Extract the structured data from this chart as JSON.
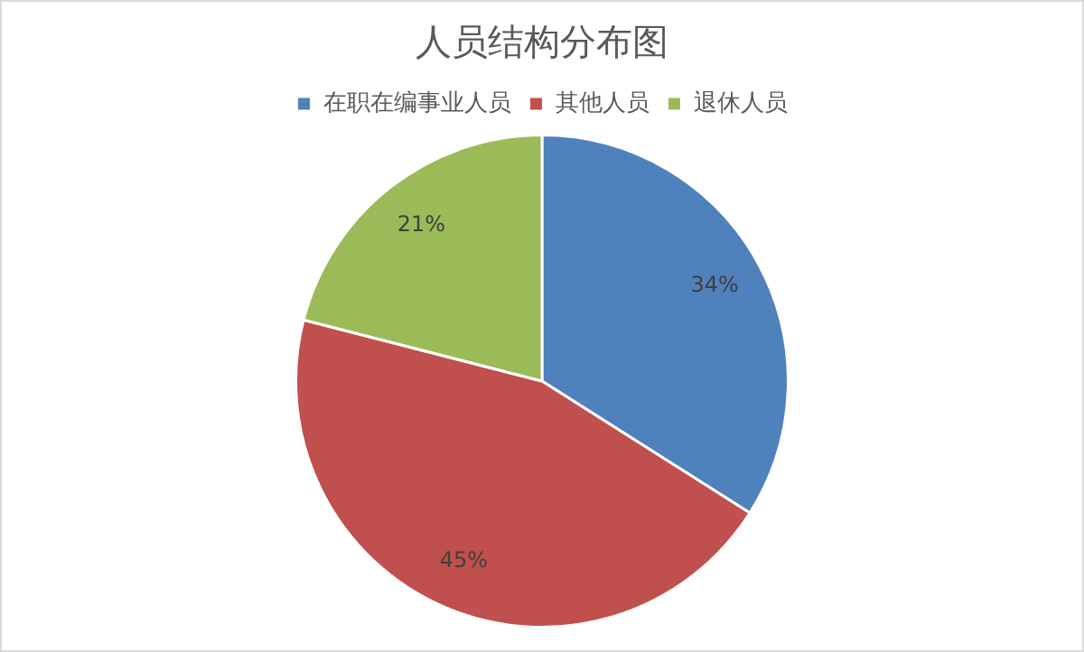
{
  "chart_data": {
    "type": "pie",
    "title": "人员结构分布图",
    "categories": [
      "在职在编事业人员",
      "其他人员",
      "退休人员"
    ],
    "values": [
      34,
      45,
      21
    ],
    "colors": [
      "#4f81bd",
      "#c0504d",
      "#9bbb59"
    ],
    "value_labels": [
      "34%",
      "45%",
      "21%"
    ],
    "legend": "top"
  }
}
